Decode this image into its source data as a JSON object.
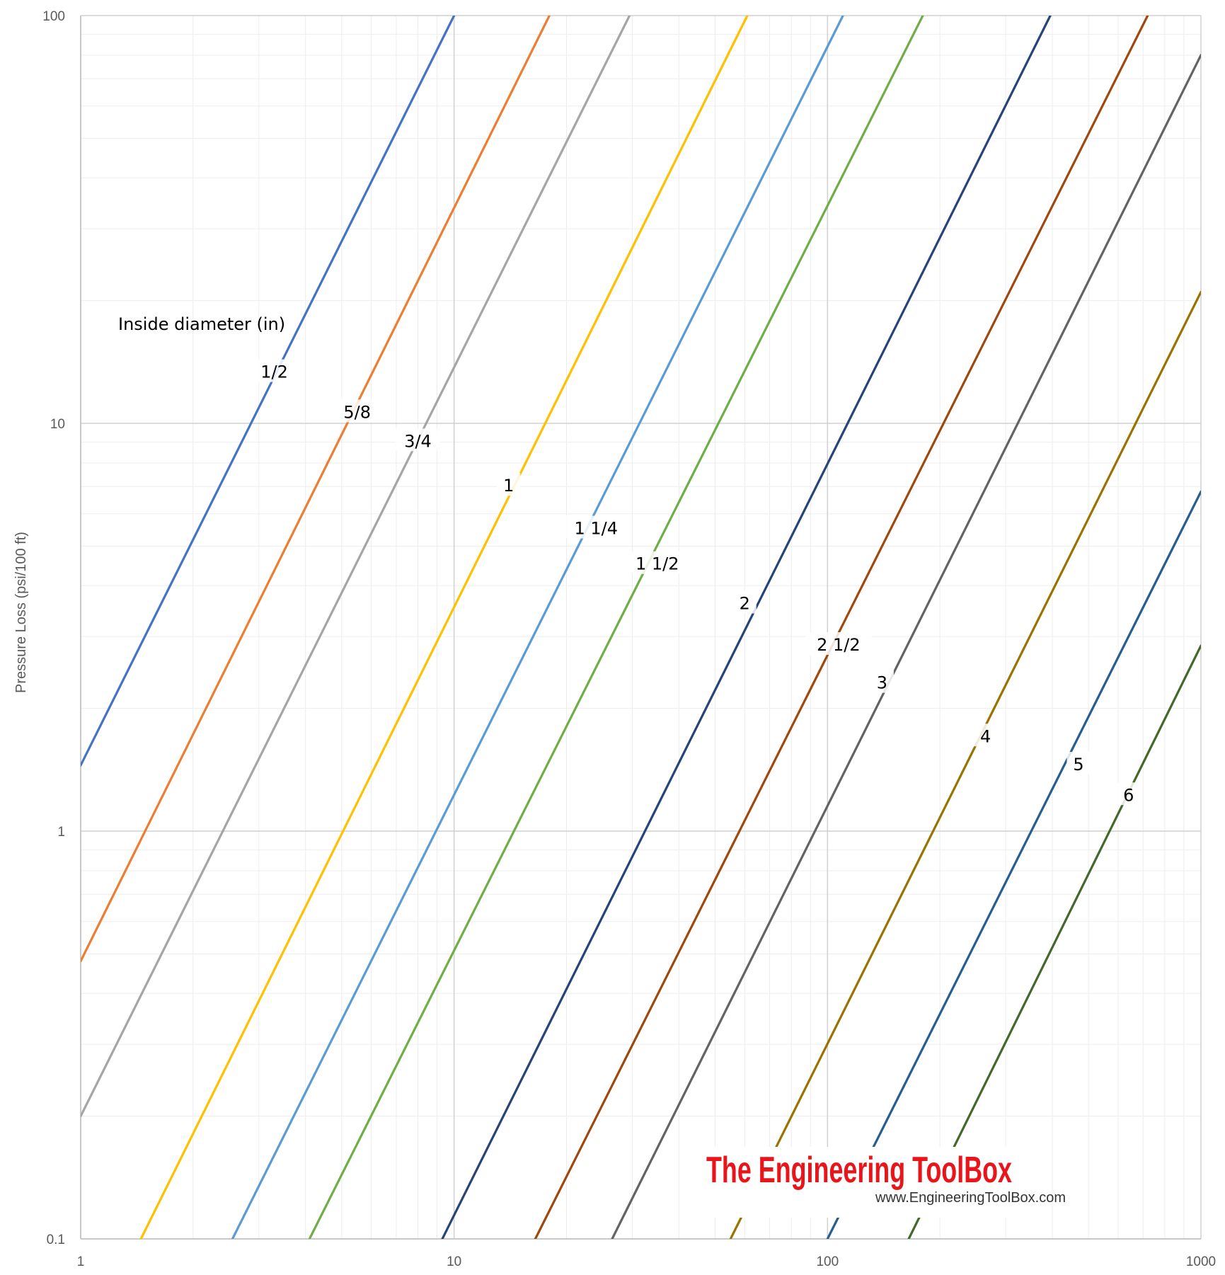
{
  "chart_data": {
    "type": "line",
    "title": "",
    "xlabel": "",
    "ylabel": "Pressure Loss (psi/100 ft)",
    "x_scale": "log",
    "y_scale": "log",
    "xlim": [
      1,
      1000
    ],
    "ylim": [
      0.1,
      100
    ],
    "x_ticks": [
      "1",
      "10",
      "100",
      "1000"
    ],
    "y_ticks": [
      "0.1",
      "1",
      "10",
      "100"
    ],
    "grid": true,
    "legend_title": "Inside diameter (in)",
    "series": [
      {
        "name": "1/2",
        "color": "#4472c4",
        "points": [
          [
            1,
            1.45
          ],
          [
            10,
            100
          ]
        ],
        "label_at": [
          3.3,
          13.3
        ]
      },
      {
        "name": "5/8",
        "color": "#ed7d31",
        "points": [
          [
            1,
            0.48
          ],
          [
            18,
            100
          ]
        ],
        "label_at": [
          5.5,
          10.6
        ]
      },
      {
        "name": "3/4",
        "color": "#a5a5a5",
        "points": [
          [
            1,
            0.2
          ],
          [
            29.5,
            100
          ]
        ],
        "label_at": [
          8.0,
          9.0
        ]
      },
      {
        "name": "1",
        "color": "#ffc000",
        "points": [
          [
            1.45,
            0.1
          ],
          [
            61,
            100
          ]
        ],
        "label_at": [
          14.0,
          7.0
        ]
      },
      {
        "name": "1 1/4",
        "color": "#5b9bd5",
        "points": [
          [
            2.55,
            0.1
          ],
          [
            110,
            100
          ]
        ],
        "label_at": [
          24.0,
          5.5
        ]
      },
      {
        "name": "1 1/2",
        "color": "#70ad47",
        "points": [
          [
            4.1,
            0.1
          ],
          [
            180,
            100
          ]
        ],
        "label_at": [
          35.0,
          4.5
        ]
      },
      {
        "name": "2",
        "color": "#264478",
        "points": [
          [
            9.3,
            0.1
          ],
          [
            395,
            100
          ]
        ],
        "label_at": [
          60.0,
          3.6
        ]
      },
      {
        "name": "2 1/2",
        "color": "#9e480e",
        "points": [
          [
            16.5,
            0.1
          ],
          [
            720,
            100
          ]
        ],
        "label_at": [
          107.0,
          2.85
        ]
      },
      {
        "name": "3",
        "color": "#636363",
        "points": [
          [
            26.5,
            0.1
          ],
          [
            1000,
            80
          ]
        ],
        "label_at": [
          140.0,
          2.3
        ]
      },
      {
        "name": "4",
        "color": "#997300",
        "points": [
          [
            55,
            0.1
          ],
          [
            1000,
            21
          ]
        ],
        "label_at": [
          265.0,
          1.7
        ]
      },
      {
        "name": "5",
        "color": "#255e91",
        "points": [
          [
            100,
            0.1
          ],
          [
            1000,
            6.8
          ]
        ],
        "label_at": [
          470.0,
          1.45
        ]
      },
      {
        "name": "6",
        "color": "#43682b",
        "points": [
          [
            165,
            0.1
          ],
          [
            1000,
            2.85
          ]
        ],
        "label_at": [
          640.0,
          1.22
        ]
      }
    ]
  },
  "watermark": {
    "main": "The Engineering ToolBox",
    "sub": "www.EngineeringToolBox.com"
  }
}
